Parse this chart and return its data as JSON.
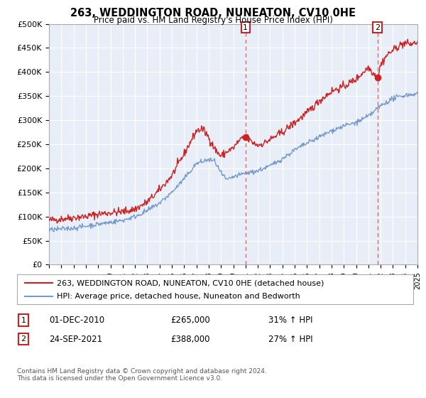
{
  "title": "263, WEDDINGTON ROAD, NUNEATON, CV10 0HE",
  "subtitle": "Price paid vs. HM Land Registry's House Price Index (HPI)",
  "ylim": [
    0,
    500000
  ],
  "yticks": [
    0,
    50000,
    100000,
    150000,
    200000,
    250000,
    300000,
    350000,
    400000,
    450000,
    500000
  ],
  "ytick_labels": [
    "£0",
    "£50K",
    "£100K",
    "£150K",
    "£200K",
    "£250K",
    "£300K",
    "£350K",
    "£400K",
    "£450K",
    "£500K"
  ],
  "legend_line1": "263, WEDDINGTON ROAD, NUNEATON, CV10 0HE (detached house)",
  "legend_line2": "HPI: Average price, detached house, Nuneaton and Bedworth",
  "sale1_label": "1",
  "sale1_date": "01-DEC-2010",
  "sale1_price": "£265,000",
  "sale1_hpi": "31% ↑ HPI",
  "sale2_label": "2",
  "sale2_date": "24-SEP-2021",
  "sale2_price": "£388,000",
  "sale2_hpi": "27% ↑ HPI",
  "footnote": "Contains HM Land Registry data © Crown copyright and database right 2024.\nThis data is licensed under the Open Government Licence v3.0.",
  "red_color": "#cc2222",
  "blue_color": "#7799cc",
  "dashed_line_color": "#dd6666",
  "background_color": "#ffffff",
  "plot_bg_color": "#e8eef8",
  "grid_color": "#ffffff",
  "marker1_y": 265000,
  "marker2_y": 388000,
  "sale1_x_year": 2011.0,
  "sale2_x_year": 2021.75,
  "xlim_start": 1995,
  "xlim_end": 2025
}
